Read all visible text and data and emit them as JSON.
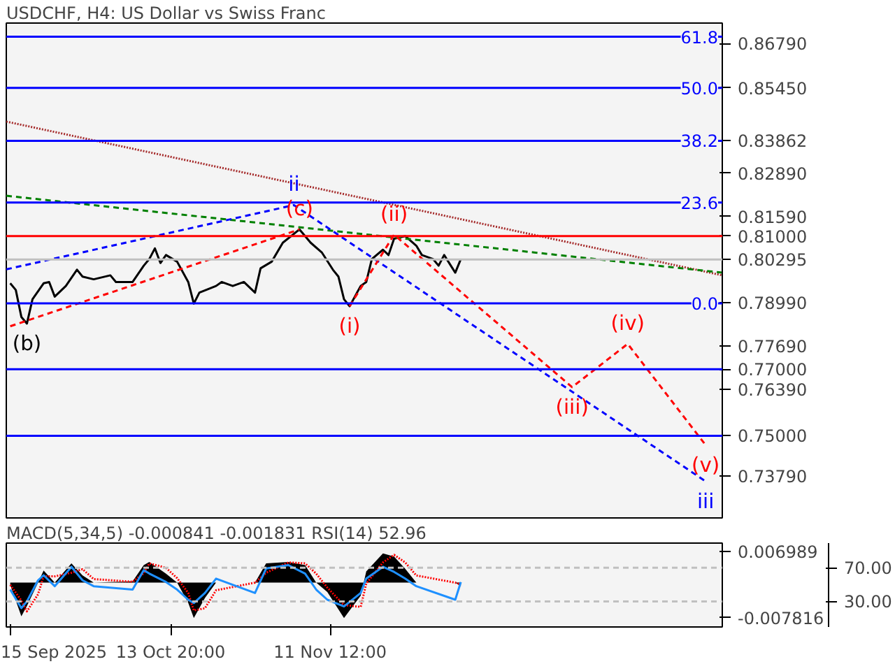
{
  "chart_data": [
    {
      "type": "line",
      "title": "USDCHF, H4:  US Dollar vs Swiss Franc",
      "grid": false,
      "tick_labels": "y",
      "marker": "none",
      "xlim": [
        "2025-09-14T07:00",
        "2026-01-21"
      ],
      "ylim": [
        0.7253,
        0.874
      ],
      "yticks": [
        {
          "value": 0.8679,
          "label": "0.86790"
        },
        {
          "value": 0.8545,
          "label": "0.85450"
        },
        {
          "value": 0.83862,
          "label": "0.83862"
        },
        {
          "value": 0.8289,
          "label": "0.82890"
        },
        {
          "value": 0.8159,
          "label": "0.81590"
        },
        {
          "value": 0.81,
          "label": "0.81000"
        },
        {
          "value": 0.80295,
          "label": "0.80295"
        },
        {
          "value": 0.7899,
          "label": "0.78990"
        },
        {
          "value": 0.7769,
          "label": "0.77690"
        },
        {
          "value": 0.77,
          "label": "0.77000"
        },
        {
          "value": 0.7639,
          "label": "0.76390"
        },
        {
          "value": 0.75,
          "label": "0.75000"
        },
        {
          "value": 0.7379,
          "label": "0.73790"
        }
      ],
      "series": [
        {
          "color": "#000000",
          "line_style": "solid",
          "x": [
            "2025-09-15",
            "2025-09-16",
            "2025-09-17",
            "2025-09-18",
            "2025-09-19",
            "2025-09-21",
            "2025-09-22",
            "2025-09-23",
            "2025-09-25",
            "2025-09-27",
            "2025-09-28",
            "2025-09-30",
            "2025-10-03",
            "2025-10-04",
            "2025-10-07",
            "2025-10-09",
            "2025-10-10",
            "2025-10-11",
            "2025-10-12",
            "2025-10-13",
            "2025-10-15",
            "2025-10-17",
            "2025-10-18",
            "2025-10-19",
            "2025-10-22",
            "2025-10-23",
            "2025-10-25",
            "2025-10-27",
            "2025-10-29",
            "2025-10-30",
            "2025-11-01",
            "2025-11-03",
            "2025-11-06",
            "2025-11-08",
            "2025-11-10",
            "2025-11-12",
            "2025-11-13",
            "2025-11-14",
            "2025-11-15",
            "2025-11-17",
            "2025-11-18",
            "2025-11-19",
            "2025-11-21",
            "2025-11-22",
            "2025-11-23",
            "2025-11-25",
            "2025-11-27",
            "2025-11-28",
            "2025-11-30",
            "2025-12-01",
            "2025-12-02",
            "2025-12-04",
            "2025-12-05"
          ],
          "values": [
            0.7958,
            0.7938,
            0.7857,
            0.7837,
            0.791,
            0.7958,
            0.7962,
            0.7918,
            0.795,
            0.7999,
            0.7978,
            0.797,
            0.7982,
            0.7962,
            0.7962,
            0.8011,
            0.8031,
            0.8063,
            0.8019,
            0.8043,
            0.8023,
            0.7962,
            0.7897,
            0.793,
            0.795,
            0.7962,
            0.795,
            0.7962,
            0.793,
            0.8003,
            0.8023,
            0.808,
            0.812,
            0.808,
            0.8051,
            0.7999,
            0.7978,
            0.791,
            0.7889,
            0.795,
            0.7962,
            0.8031,
            0.8059,
            0.8043,
            0.8092,
            0.81,
            0.8071,
            0.8043,
            0.8031,
            0.8011,
            0.8043,
            0.799,
            0.8031
          ]
        },
        {
          "color": "#a52a2a",
          "line_style": "dotted",
          "x": [
            "2025-09-14T07:00",
            "2026-01-21"
          ],
          "values": [
            0.8444,
            0.7982
          ]
        },
        {
          "color": "#008000",
          "line_style": "dashed",
          "x": [
            "2025-09-14T07:00",
            "2026-01-21"
          ],
          "values": [
            0.8221,
            0.799
          ]
        },
        {
          "color": "#0000ff",
          "line_style": "dashed",
          "x": [
            "2025-09-14T07:00",
            "2025-11-05",
            "2026-01-18"
          ],
          "values": [
            0.8,
            0.8193,
            0.7363
          ]
        },
        {
          "color": "#ff0000",
          "line_style": "dashed",
          "x": [
            "2025-09-15",
            "2025-11-06"
          ],
          "values": [
            0.7829,
            0.812
          ]
        },
        {
          "color": "#ff0000",
          "line_style": "dashed",
          "x": [
            "2025-11-15",
            "2025-11-23",
            "2025-12-25",
            "2026-01-04",
            "2026-01-18"
          ],
          "values": [
            0.7889,
            0.8104,
            0.7646,
            0.7776,
            0.7472
          ]
        }
      ],
      "ref_lines": [
        {
          "axis": "y",
          "value": 0.8699,
          "color": "#0000ff"
        },
        {
          "axis": "y",
          "value": 0.8545,
          "color": "#0000ff"
        },
        {
          "axis": "y",
          "value": 0.83862,
          "color": "#0000ff"
        },
        {
          "axis": "y",
          "value": 0.8201,
          "color": "#0000ff"
        },
        {
          "axis": "y",
          "value": 0.81,
          "color": "#ff0000"
        },
        {
          "axis": "y",
          "value": 0.80295,
          "color": "#c0c0c0"
        },
        {
          "axis": "y",
          "value": 0.7898,
          "color": "#0000ff"
        },
        {
          "axis": "y",
          "value": 0.77,
          "color": "#0000ff"
        },
        {
          "axis": "y",
          "value": 0.75,
          "color": "#0000ff"
        }
      ],
      "annotations": [
        {
          "text": "61.8",
          "x": "2026-01-21",
          "y": 0.8699
        },
        {
          "text": "50.0",
          "x": "2026-01-21",
          "y": 0.8545
        },
        {
          "text": "38.2",
          "x": "2026-01-21",
          "y": 0.83862
        },
        {
          "text": "23.6",
          "x": "2026-01-21",
          "y": 0.8201
        },
        {
          "text": "0.0",
          "x": "2026-01-21",
          "y": 0.7898
        },
        {
          "text": "(b)",
          "x": "2025-09-18",
          "y": 0.7837
        },
        {
          "text": "(c)",
          "x": "2025-11-06",
          "y": 0.812
        },
        {
          "text": "ii",
          "x": "2025-11-05",
          "y": 0.8193
        },
        {
          "text": "(i)",
          "x": "2025-11-15",
          "y": 0.7889
        },
        {
          "text": "(ii)",
          "x": "2025-11-23",
          "y": 0.8104
        },
        {
          "text": "(iii)",
          "x": "2025-12-25",
          "y": 0.7646
        },
        {
          "text": "(iv)",
          "x": "2026-01-04",
          "y": 0.7776
        },
        {
          "text": "(v)",
          "x": "2026-01-18",
          "y": 0.7472
        },
        {
          "text": "iii",
          "x": "2026-01-18",
          "y": 0.7363
        }
      ]
    },
    {
      "type": "area",
      "title": "MACD(5,34,5) -0.000841 -0.001831 RSI(14) 52.96",
      "grid": false,
      "marker": "none",
      "xlim": [
        "2025-09-14T07:00",
        "2026-01-21"
      ],
      "ylim": [
        -0.00987,
        0.00881
      ],
      "y2lim": [
        -0.3,
        99.1
      ],
      "xticks": [
        {
          "value": "2025-09-15",
          "label": "15 Sep 2025"
        },
        {
          "value": "2025-10-13T20:00",
          "label": "13 Oct 20:00"
        },
        {
          "value": "2025-11-11T12:00",
          "label": "11 Nov 12:00"
        }
      ],
      "yticks": [
        {
          "value": 0.006989,
          "label": "0.006989"
        },
        {
          "value": -0.007816,
          "label": "-0.007816"
        }
      ],
      "y2ticks": [
        {
          "value": 70,
          "label": "70.00"
        },
        {
          "value": 30,
          "label": "30.00"
        }
      ],
      "x": [
        "2025-09-15",
        "2025-09-17",
        "2025-09-18",
        "2025-09-20",
        "2025-09-21",
        "2025-09-23",
        "2025-09-26",
        "2025-09-28",
        "2025-09-30",
        "2025-10-07",
        "2025-10-09",
        "2025-10-10",
        "2025-10-13",
        "2025-10-15",
        "2025-10-17",
        "2025-10-18",
        "2025-10-20",
        "2025-10-22",
        "2025-10-29",
        "2025-10-31",
        "2025-11-04",
        "2025-11-07",
        "2025-11-09",
        "2025-11-11",
        "2025-11-14",
        "2025-11-17",
        "2025-11-18",
        "2025-11-21",
        "2025-11-23",
        "2025-11-25",
        "2025-11-27",
        "2025-12-04",
        "2025-12-05"
      ],
      "series": [
        {
          "color": "#000000",
          "values": [
            -0.0005,
            -0.0075,
            -0.0052,
            0,
            0.0027,
            0,
            0.0043,
            0.0016,
            0,
            0.0003,
            0.0039,
            0.0046,
            0.002,
            0,
            -0.0045,
            -0.0079,
            -0.0034,
            0,
            0,
            0.0043,
            0.0046,
            0.0039,
            0,
            -0.0021,
            -0.0079,
            -0.0029,
            0.0025,
            0.0065,
            0.0058,
            0.0031,
            0,
            0,
            -0.0008
          ]
        },
        {
          "type": "line",
          "color": "#ff0000",
          "line_style": "dotted",
          "values": [
            -0.0005,
            -0.004,
            -0.0064,
            -0.0026,
            0.0014,
            0.0014,
            0.0022,
            0.003,
            0.0008,
            0.0002,
            0.0021,
            0.0043,
            0.0033,
            0.001,
            -0.0023,
            -0.0062,
            -0.0057,
            -0.0017,
            0,
            0.0022,
            0.0045,
            0.0043,
            0.002,
            -0.0011,
            -0.005,
            -0.0054,
            -0.0002,
            0.0045,
            0.0062,
            0.0045,
            0.0016,
            0,
            -0.0004
          ]
        },
        {
          "type": "line",
          "axis": "y2",
          "color": "#1e90ff",
          "line_style": "solid",
          "values": [
            44,
            22,
            30,
            55,
            61,
            48,
            71,
            55,
            48,
            44,
            67,
            63,
            53,
            44,
            32,
            28,
            40,
            57,
            40,
            69,
            73,
            63,
            44,
            32,
            24,
            40,
            57,
            71,
            65,
            57,
            48,
            32,
            52.96
          ]
        }
      ],
      "ref_lines": [
        {
          "axis": "y2",
          "value": 70,
          "color": "#c0c0c0",
          "line_style": "dashed"
        },
        {
          "axis": "y2",
          "value": 30,
          "color": "#c0c0c0",
          "line_style": "dashed"
        }
      ]
    }
  ]
}
